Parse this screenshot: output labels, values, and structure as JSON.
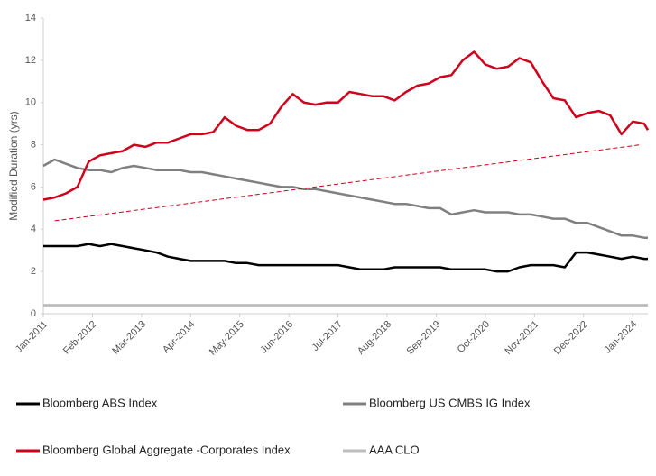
{
  "chart_data": {
    "type": "line",
    "y_label": "Modified Duration (yrs)",
    "x": [
      "2011-01",
      "2011-04",
      "2011-07",
      "2011-10",
      "2012-01",
      "2012-04",
      "2012-07",
      "2012-10",
      "2013-01",
      "2013-04",
      "2013-07",
      "2013-10",
      "2014-01",
      "2014-04",
      "2014-07",
      "2014-10",
      "2015-01",
      "2015-04",
      "2015-07",
      "2015-10",
      "2016-01",
      "2016-04",
      "2016-07",
      "2016-10",
      "2017-01",
      "2017-04",
      "2017-07",
      "2017-10",
      "2018-01",
      "2018-04",
      "2018-07",
      "2018-10",
      "2019-01",
      "2019-04",
      "2019-07",
      "2019-10",
      "2020-01",
      "2020-04",
      "2020-07",
      "2020-10",
      "2021-01",
      "2021-04",
      "2021-07",
      "2021-10",
      "2022-01",
      "2022-04",
      "2022-07",
      "2022-10",
      "2023-01",
      "2023-04",
      "2023-07",
      "2023-10",
      "2024-01",
      "2024-04",
      "2024-05"
    ],
    "series": [
      {
        "name": "Bloomberg ABS Index",
        "color": "#000000",
        "values": [
          3.2,
          3.2,
          3.2,
          3.2,
          3.3,
          3.2,
          3.3,
          3.2,
          3.1,
          3.0,
          2.9,
          2.7,
          2.6,
          2.5,
          2.5,
          2.5,
          2.5,
          2.4,
          2.4,
          2.3,
          2.3,
          2.3,
          2.3,
          2.3,
          2.3,
          2.3,
          2.3,
          2.2,
          2.1,
          2.1,
          2.1,
          2.2,
          2.2,
          2.2,
          2.2,
          2.2,
          2.1,
          2.1,
          2.1,
          2.1,
          2.0,
          2.0,
          2.2,
          2.3,
          2.3,
          2.3,
          2.2,
          2.9,
          2.9,
          2.8,
          2.7,
          2.6,
          2.7,
          2.6,
          2.6
        ]
      },
      {
        "name": "Bloomberg US CMBS IG Index",
        "color": "#808080",
        "values": [
          7.0,
          7.3,
          7.1,
          6.9,
          6.8,
          6.8,
          6.7,
          6.9,
          7.0,
          6.9,
          6.8,
          6.8,
          6.8,
          6.7,
          6.7,
          6.6,
          6.5,
          6.4,
          6.3,
          6.2,
          6.1,
          6.0,
          6.0,
          5.9,
          5.9,
          5.8,
          5.7,
          5.6,
          5.5,
          5.4,
          5.3,
          5.2,
          5.2,
          5.1,
          5.0,
          5.0,
          4.7,
          4.8,
          4.9,
          4.8,
          4.8,
          4.8,
          4.7,
          4.7,
          4.6,
          4.5,
          4.5,
          4.3,
          4.3,
          4.1,
          3.9,
          3.7,
          3.7,
          3.6,
          3.6
        ]
      },
      {
        "name": "Bloomberg Global Aggregate -Corporates Index",
        "color": "#d0021b",
        "values": [
          5.4,
          5.5,
          5.7,
          6.0,
          7.2,
          7.5,
          7.6,
          7.7,
          8.0,
          7.9,
          8.1,
          8.1,
          8.3,
          8.5,
          8.5,
          8.6,
          9.3,
          8.9,
          8.7,
          8.7,
          9.0,
          9.8,
          10.4,
          10.0,
          9.9,
          10.0,
          10.0,
          10.5,
          10.4,
          10.3,
          10.3,
          10.1,
          10.5,
          10.8,
          10.9,
          11.2,
          11.3,
          12.0,
          12.4,
          11.8,
          11.6,
          11.7,
          12.1,
          11.9,
          11.0,
          10.2,
          10.1,
          9.3,
          9.5,
          9.6,
          9.4,
          8.5,
          9.1,
          9.0,
          8.7
        ]
      },
      {
        "name": "AAA CLO",
        "color": "#bdbdbd",
        "values": [
          0.4,
          0.4,
          0.4,
          0.4,
          0.4,
          0.4,
          0.4,
          0.4,
          0.4,
          0.4,
          0.4,
          0.4,
          0.4,
          0.4,
          0.4,
          0.4,
          0.4,
          0.4,
          0.4,
          0.4,
          0.4,
          0.4,
          0.4,
          0.4,
          0.4,
          0.4,
          0.4,
          0.4,
          0.4,
          0.4,
          0.4,
          0.4,
          0.4,
          0.4,
          0.4,
          0.4,
          0.4,
          0.4,
          0.4,
          0.4,
          0.4,
          0.4,
          0.4,
          0.4,
          0.4,
          0.4,
          0.4,
          0.4,
          0.4,
          0.4,
          0.4,
          0.4,
          0.4,
          0.4,
          0.4
        ]
      }
    ],
    "trendline": {
      "color": "#d0021b",
      "x": [
        "2011-04",
        "2024-03"
      ],
      "values": [
        4.4,
        8.0
      ]
    },
    "xlim": [
      "2011-01",
      "2024-05"
    ],
    "xticks": [
      {
        "value": "2011-01",
        "label": "Jan-2011"
      },
      {
        "value": "2012-02",
        "label": "Feb-2012"
      },
      {
        "value": "2013-03",
        "label": "Mar-2013"
      },
      {
        "value": "2014-04",
        "label": "Apr-2014"
      },
      {
        "value": "2015-05",
        "label": "May-2015"
      },
      {
        "value": "2016-06",
        "label": "Jun-2016"
      },
      {
        "value": "2017-07",
        "label": "Jul-2017"
      },
      {
        "value": "2018-08",
        "label": "Aug-2018"
      },
      {
        "value": "2019-09",
        "label": "Sep-2019"
      },
      {
        "value": "2020-10",
        "label": "Oct-2020"
      },
      {
        "value": "2021-11",
        "label": "Nov-2021"
      },
      {
        "value": "2022-12",
        "label": "Dec-2022"
      },
      {
        "value": "2024-01",
        "label": "Jan-2024"
      }
    ],
    "ylim": [
      0,
      14
    ],
    "yticks": [
      0,
      2,
      4,
      6,
      8,
      10,
      12,
      14
    ]
  }
}
